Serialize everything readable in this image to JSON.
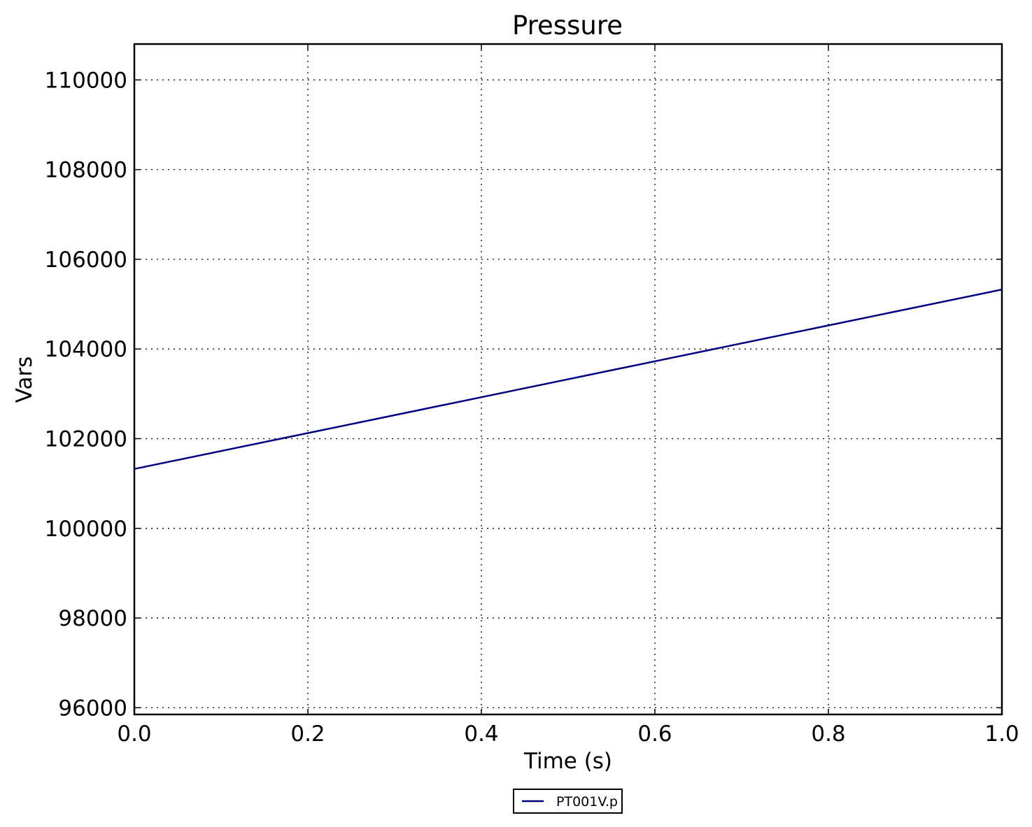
{
  "chart_data": {
    "type": "line",
    "title": "Pressure",
    "xlabel": "Time (s)",
    "ylabel": "Vars",
    "xlim": [
      0.0,
      1.0
    ],
    "ylim": [
      95850,
      110800
    ],
    "x_ticks": [
      "0.0",
      "0.2",
      "0.4",
      "0.6",
      "0.8",
      "1.0"
    ],
    "x_tick_values": [
      0.0,
      0.2,
      0.4,
      0.6,
      0.8,
      1.0
    ],
    "y_ticks": [
      "96000",
      "98000",
      "100000",
      "102000",
      "104000",
      "106000",
      "108000",
      "110000"
    ],
    "y_tick_values": [
      96000,
      98000,
      100000,
      102000,
      104000,
      106000,
      108000,
      110000
    ],
    "grid": true,
    "legend": {
      "placement": "bottom-center-outside"
    },
    "series": [
      {
        "name": "PT001V.p",
        "color": "#000080",
        "x": [
          0.0,
          0.2,
          0.4,
          0.6,
          0.8,
          1.0
        ],
        "y": [
          101325,
          102125,
          102925,
          103725,
          104525,
          105325
        ]
      }
    ]
  }
}
